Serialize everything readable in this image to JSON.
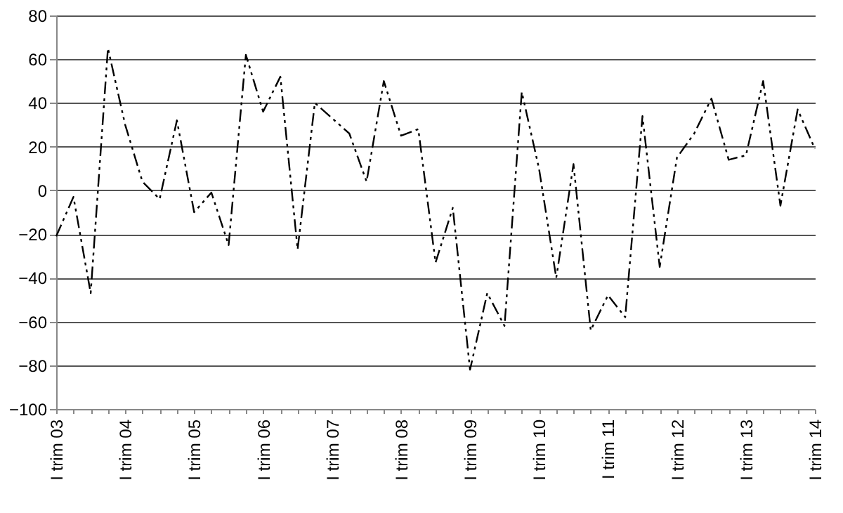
{
  "chart_data": {
    "type": "line",
    "categories": [
      "I trim 03",
      null,
      null,
      null,
      "I trim 04",
      null,
      null,
      null,
      "I trim 05",
      null,
      null,
      null,
      "I trim 06",
      null,
      null,
      null,
      "I trim 07",
      null,
      null,
      null,
      "I trim 08",
      null,
      null,
      null,
      "I trim 09",
      null,
      null,
      null,
      "I trim 10",
      null,
      null,
      null,
      "I trim 11",
      null,
      null,
      null,
      "I trim 12",
      null,
      null,
      null,
      "I trim 13",
      null,
      null,
      null,
      "I trim 14"
    ],
    "series": [
      {
        "color": "#000000",
        "values": [
          -21,
          -3,
          -47,
          65,
          30,
          4,
          -4,
          32,
          -10,
          -1,
          -25,
          62,
          36,
          52,
          -27,
          40,
          33,
          26,
          4,
          50,
          25,
          28,
          -33,
          -8,
          -82,
          -47,
          -62,
          45,
          10,
          -40,
          12,
          -64,
          -48,
          -58,
          34,
          -35,
          15,
          26,
          42,
          14,
          16,
          50,
          -7,
          37,
          19
        ]
      }
    ],
    "ylim": [
      -100,
      80
    ],
    "yticks": [
      -100,
      -80,
      -60,
      -40,
      -20,
      0,
      20,
      40,
      60,
      80
    ],
    "grid": "y",
    "line_style": "dashed",
    "marker": "none",
    "legend": false
  }
}
